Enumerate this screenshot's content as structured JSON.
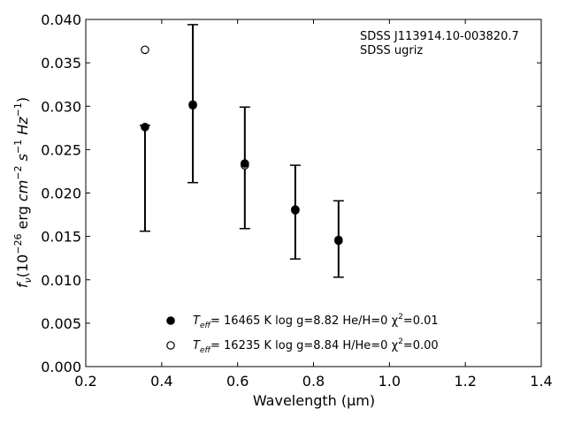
{
  "chart_data": {
    "type": "scatter",
    "xlabel": "Wavelength (μm)",
    "ylabel_parts": {
      "f": "f",
      "nu": "ν",
      "open": "(10",
      "exp1": "−26",
      "erg": " erg ",
      "cm": "cm",
      "exp2": "−2",
      "s": " s",
      "exp3": "−1",
      "hz": " Hz",
      "exp4": "−1",
      "close": ")"
    },
    "xlim": [
      0.2,
      1.4
    ],
    "ylim": [
      0.0,
      0.04
    ],
    "xticks": [
      "0.2",
      "0.4",
      "0.6",
      "0.8",
      "1.0",
      "1.2",
      "1.4"
    ],
    "yticks": [
      "0.000",
      "0.005",
      "0.010",
      "0.015",
      "0.020",
      "0.025",
      "0.030",
      "0.035",
      "0.040"
    ],
    "xtick_values": [
      0.2,
      0.4,
      0.6,
      0.8,
      1.0,
      1.2,
      1.4
    ],
    "ytick_values": [
      0.0,
      0.005,
      0.01,
      0.015,
      0.02,
      0.025,
      0.03,
      0.035,
      0.04
    ],
    "annotations": [
      "SDSS J113914.10-003820.7",
      "SDSS ugriz"
    ],
    "observed": {
      "x": [
        0.356,
        0.482,
        0.619,
        0.752,
        0.866
      ],
      "y": [
        0.0217,
        0.0303,
        0.0229,
        0.0178,
        0.0147
      ],
      "yerr": [
        0.0061,
        0.0091,
        0.007,
        0.0054,
        0.0044
      ]
    },
    "series": [
      {
        "marker": "filled",
        "x": [
          0.356,
          0.482,
          0.619,
          0.752,
          0.866
        ],
        "y": [
          0.0276,
          0.0301,
          0.0234,
          0.0181,
          0.0145
        ],
        "legend": {
          "t": "T",
          "sub": "eff",
          "params": "= 16465 K  log g=8.82  He/H=0  χ",
          "sup": "2",
          "fit": "=0.01"
        }
      },
      {
        "marker": "open",
        "x": [
          0.356,
          0.482,
          0.619,
          0.752,
          0.866
        ],
        "y": [
          0.0365,
          0.0302,
          0.0232,
          0.018,
          0.0146
        ],
        "legend": {
          "t": "T",
          "sub": "eff",
          "params": "= 16235 K  log g=8.84  H/He=0  χ",
          "sup": "2",
          "fit": "=0.00"
        }
      }
    ],
    "grid": false,
    "legend_position": "bottom-center"
  }
}
